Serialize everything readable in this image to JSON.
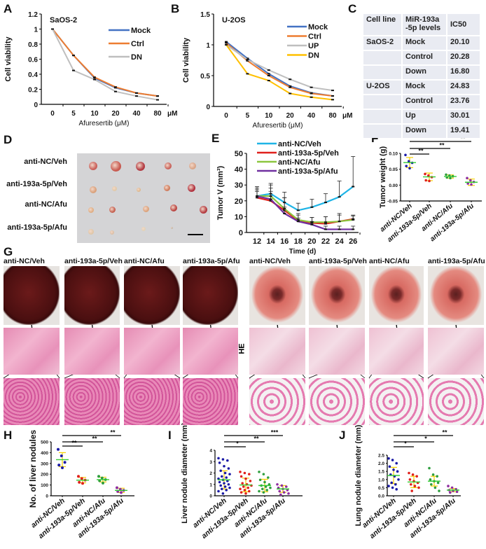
{
  "panel_letters": {
    "A": "A",
    "B": "B",
    "C": "C",
    "D": "D",
    "E": "E",
    "F": "F",
    "G": "G",
    "H": "H",
    "I": "I",
    "J": "J"
  },
  "group_labels": [
    "anti-NC/Veh",
    "anti-193a-5p/Veh",
    "anti-NC/Afu",
    "anti-193a-5p/Afu"
  ],
  "colors": {
    "mean_line": "#33cc33",
    "error_bar": "#f5d000"
  },
  "chart_data": [
    {
      "id": "A",
      "type": "line",
      "title": "SaOS-2",
      "xlabel": "Afuresertib (μM)",
      "ylabel": "Cell viability",
      "x_unit": "μM",
      "categories": [
        "0",
        "5",
        "10",
        "20",
        "40",
        "80"
      ],
      "ylim": [
        0,
        1.2
      ],
      "yticks": [
        "0",
        "0.2",
        "0.4",
        "0.6",
        "0.8",
        "1",
        "1.2"
      ],
      "legend": "top-right",
      "series": [
        {
          "name": "Mock",
          "color": "#4472c4",
          "values": [
            1.0,
            0.65,
            0.35,
            0.22,
            0.15,
            0.11
          ]
        },
        {
          "name": "Ctrl",
          "color": "#ed7d31",
          "values": [
            1.0,
            0.65,
            0.36,
            0.23,
            0.15,
            0.11
          ]
        },
        {
          "name": "DN",
          "color": "#bfbfbf",
          "values": [
            1.0,
            0.45,
            0.33,
            0.17,
            0.11,
            0.06
          ]
        }
      ]
    },
    {
      "id": "B",
      "type": "line",
      "title": "U-2OS",
      "xlabel": "Afuresertib (μM)",
      "ylabel": "Cell viability",
      "x_unit": "μM",
      "categories": [
        "0",
        "5",
        "10",
        "20",
        "40",
        "80"
      ],
      "ylim": [
        0,
        1.5
      ],
      "yticks": [
        "0",
        "0.5",
        "1",
        "1.5"
      ],
      "legend": "top-right",
      "series": [
        {
          "name": "Mock",
          "color": "#4472c4",
          "values": [
            1.05,
            0.78,
            0.53,
            0.33,
            0.22,
            0.17
          ]
        },
        {
          "name": "Ctrl",
          "color": "#ed7d31",
          "values": [
            1.03,
            0.74,
            0.5,
            0.31,
            0.21,
            0.17
          ]
        },
        {
          "name": "UP",
          "color": "#bfbfbf",
          "values": [
            1.0,
            0.76,
            0.59,
            0.44,
            0.31,
            0.26
          ]
        },
        {
          "name": "DN",
          "color": "#ffc000",
          "values": [
            1.0,
            0.53,
            0.42,
            0.21,
            0.15,
            0.11
          ]
        }
      ]
    },
    {
      "id": "C",
      "type": "table",
      "headers": [
        "Cell line",
        "MiR-193a -5p levels",
        "IC50"
      ],
      "rows": [
        [
          "SaOS-2",
          "Mock",
          "20.10"
        ],
        [
          "",
          "Control",
          "20.28"
        ],
        [
          "",
          "Down",
          "16.80"
        ],
        [
          "U-2OS",
          "Mock",
          "24.83"
        ],
        [
          "",
          "Control",
          "23.76"
        ],
        [
          "",
          "Up",
          "30.01"
        ],
        [
          "",
          "Down",
          "19.41"
        ]
      ]
    },
    {
      "id": "E",
      "type": "line",
      "xlabel": "Time (d)",
      "ylabel": "Tumor V (mm³)",
      "x": [
        12,
        14,
        16,
        18,
        20,
        22,
        24,
        26
      ],
      "ylim": [
        0,
        50
      ],
      "yticks": [
        "0",
        "10",
        "20",
        "30",
        "40",
        "50"
      ],
      "legend": "top",
      "series": [
        {
          "name": "anti-NC/Veh",
          "color": "#1fb4e6",
          "values": [
            23,
            24.5,
            19,
            14,
            16,
            19,
            22.5,
            29
          ],
          "error_top": [
            29,
            31,
            25.5,
            18.5,
            21,
            24.5,
            32.5,
            48
          ]
        },
        {
          "name": "anti-193a-5p/Veh",
          "color": "#e0201c",
          "values": [
            22,
            20,
            14,
            7.5,
            6,
            5.5,
            7,
            8.5
          ],
          "error_top": [
            28,
            28,
            22,
            11,
            9.5,
            10,
            12,
            11
          ]
        },
        {
          "name": "anti-NC/Afu",
          "color": "#8cc63f",
          "values": [
            23,
            23,
            15,
            8,
            6.5,
            6.5,
            7,
            8
          ],
          "error_top": [
            27,
            30,
            22,
            12,
            9.5,
            10,
            11,
            10.5
          ]
        },
        {
          "name": "anti-193a-5p/Afu",
          "color": "#7030a0",
          "values": [
            23,
            21,
            12,
            7,
            5,
            2,
            2,
            2
          ],
          "error_top": [
            26,
            26,
            16,
            9,
            7,
            4,
            4,
            4
          ]
        }
      ]
    },
    {
      "id": "F",
      "type": "scatter",
      "ylabel": "Tumor weight (g)",
      "categories": [
        "anti-NC/Veh",
        "anti-193a-5p/Veh",
        "anti-NC/Afu",
        "anti-193a-5p/Afu"
      ],
      "ylim": [
        -0.05,
        0.1
      ],
      "yticks": [
        "-0.05",
        "0.00",
        "0.05",
        "0.10"
      ],
      "means": [
        0.071,
        0.026,
        0.027,
        0.009
      ],
      "sd": [
        0.016,
        0.012,
        0.005,
        0.01
      ],
      "points": [
        [
          0.095,
          0.075,
          0.07,
          0.06,
          0.053
        ],
        [
          0.035,
          0.03,
          0.025,
          0.015,
          0.013
        ],
        [
          0.033,
          0.03,
          0.028,
          0.024,
          0.022
        ],
        [
          0.022,
          0.015,
          0.01,
          0.005,
          0.002
        ]
      ],
      "point_colors": [
        "#1a1aa6",
        "#e0201c",
        "#2e9e3e",
        "#8e2fa0"
      ],
      "significance": [
        {
          "from": 0,
          "to": 1,
          "label": "**"
        },
        {
          "from": 0,
          "to": 2,
          "label": "**"
        },
        {
          "from": 0,
          "to": 3,
          "label": "**"
        }
      ]
    },
    {
      "id": "H",
      "type": "scatter",
      "ylabel": "No. of liver nodules",
      "categories": [
        "anti-NC/Veh",
        "anti-193a-5p/Veh",
        "anti-NC/Afu",
        "anti-193a-5p/Afu"
      ],
      "ylim": [
        0,
        500
      ],
      "yticks": [
        "0",
        "100",
        "200",
        "300",
        "400",
        "500"
      ],
      "means": [
        335,
        145,
        150,
        50
      ],
      "sd": [
        65,
        25,
        22,
        20
      ],
      "points": [
        [
          430,
          370,
          310,
          285,
          260
        ],
        [
          180,
          160,
          145,
          125,
          115
        ],
        [
          180,
          165,
          150,
          140,
          118
        ],
        [
          75,
          60,
          50,
          40,
          30
        ]
      ],
      "point_colors": [
        "#1a1aa6",
        "#e0201c",
        "#2e9e3e",
        "#8e2fa0"
      ],
      "significance": [
        {
          "from": 0,
          "to": 1,
          "label": "**"
        },
        {
          "from": 0,
          "to": 2,
          "label": "**"
        },
        {
          "from": 0,
          "to": 3,
          "label": "**"
        }
      ]
    },
    {
      "id": "I",
      "type": "scatter",
      "ylabel": "Liver nodule diameter (mm)",
      "categories": [
        "anti-NC/Veh",
        "anti-193a-5p/Veh",
        "anti-NC/Afu",
        "anti-193a-5p/Afu"
      ],
      "ylim": [
        0,
        4
      ],
      "yticks": [
        "0",
        "1",
        "2",
        "3",
        "4"
      ],
      "means": [
        1.4,
        0.95,
        0.9,
        0.6
      ],
      "sd": [
        0.8,
        0.6,
        0.55,
        0.3
      ],
      "points": [
        [
          3.3,
          3.2,
          3.1,
          2.9,
          2.6,
          2.4,
          2.2,
          2.0,
          1.9,
          1.7,
          1.6,
          1.5,
          1.4,
          1.3,
          1.2,
          1.1,
          1.0,
          0.9,
          0.8,
          0.7,
          0.6,
          0.5,
          0.4,
          0.2
        ],
        [
          2.1,
          2.0,
          1.9,
          1.7,
          1.5,
          1.3,
          1.1,
          1.0,
          0.9,
          0.8,
          0.7,
          0.6,
          0.5,
          0.4,
          0.3,
          0.2
        ],
        [
          2.1,
          1.9,
          1.6,
          1.4,
          1.2,
          1.0,
          0.9,
          0.8,
          0.7,
          0.6,
          0.5,
          0.4,
          0.3
        ],
        [
          1.0,
          0.9,
          0.8,
          0.7,
          0.6,
          0.5,
          0.4,
          0.3,
          0.2,
          0.1
        ]
      ],
      "point_colors": [
        "#1a1aa6",
        "#e0201c",
        "#2e9e3e",
        "#8e2fa0"
      ],
      "significance": [
        {
          "from": 0,
          "to": 1,
          "label": "*"
        },
        {
          "from": 0,
          "to": 2,
          "label": "**"
        },
        {
          "from": 0,
          "to": 3,
          "label": "***"
        }
      ]
    },
    {
      "id": "J",
      "type": "scatter",
      "ylabel": "Lung nodule diameter (mm)",
      "categories": [
        "anti-NC/Veh",
        "anti-193a-5p/Veh",
        "anti-NC/Afu",
        "anti-193a-5p/Afu"
      ],
      "ylim": [
        0,
        2.5
      ],
      "yticks": [
        "0.0",
        "0.5",
        "1.0",
        "1.5",
        "2.0",
        "2.5"
      ],
      "means": [
        1.25,
        0.85,
        0.9,
        0.35
      ],
      "sd": [
        0.5,
        0.35,
        0.3,
        0.1
      ],
      "points": [
        [
          2.3,
          2.2,
          2.0,
          1.8,
          1.6,
          1.5,
          1.3,
          1.2,
          1.0,
          0.8,
          0.7,
          0.6,
          0.5,
          0.4
        ],
        [
          1.4,
          1.3,
          1.2,
          1.0,
          0.9,
          0.8,
          0.7,
          0.6,
          0.5,
          0.3
        ],
        [
          1.7,
          1.3,
          1.2,
          1.0,
          0.9,
          0.8,
          0.7,
          0.5,
          0.3
        ],
        [
          0.6,
          0.5,
          0.4,
          0.35,
          0.3,
          0.25,
          0.2
        ]
      ],
      "point_colors": [
        "#1a1aa6",
        "#e0201c",
        "#2e9e3e",
        "#8e2fa0"
      ],
      "significance": [
        {
          "from": 0,
          "to": 1,
          "label": "*"
        },
        {
          "from": 0,
          "to": 2,
          "label": "*"
        },
        {
          "from": 0,
          "to": 3,
          "label": "**"
        }
      ]
    }
  ],
  "panel_G": {
    "stain_label": "HE"
  }
}
